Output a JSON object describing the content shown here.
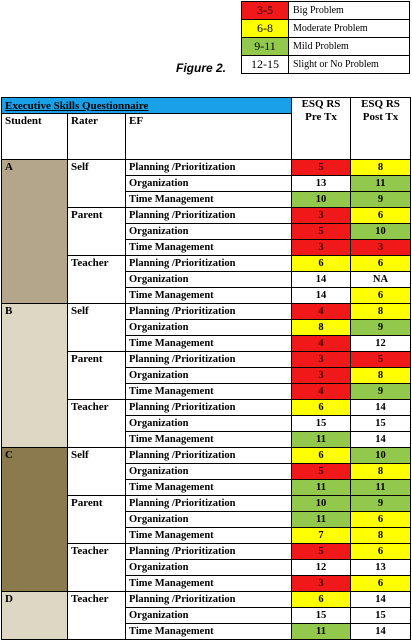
{
  "legend": [
    {
      "range": "3-5",
      "label": "Big Problem",
      "color": "#f01818"
    },
    {
      "range": "6-8",
      "label": "Moderate Problem",
      "color": "#ffff00"
    },
    {
      "range": "9-11",
      "label": "Mild Problem",
      "color": "#92c94d"
    },
    {
      "range": "12-15",
      "label": "Slight or No Problem",
      "color": "#ffffff"
    }
  ],
  "figure_label": "Figure 2.",
  "table": {
    "title": "Executive Skills Questionnaire",
    "headers": {
      "student": "Student",
      "rater": "Rater",
      "ef": "EF",
      "pre": "ESQ RS Pre Tx",
      "post": "ESQ RS Post Tx"
    },
    "students": [
      {
        "id": "A",
        "color": "#b3a68a",
        "raters": [
          {
            "name": "Self",
            "rows": [
              {
                "ef": "Planning /Prioritization",
                "pre": "5",
                "post": "8"
              },
              {
                "ef": "Organization",
                "pre": "13",
                "post": "11"
              },
              {
                "ef": "Time Management",
                "pre": "10",
                "post": "9"
              }
            ]
          },
          {
            "name": "Parent",
            "rows": [
              {
                "ef": "Planning /Prioritization",
                "pre": "3",
                "post": "6"
              },
              {
                "ef": "Organization",
                "pre": "5",
                "post": "10"
              },
              {
                "ef": "Time Management",
                "pre": "3",
                "post": "3"
              }
            ]
          },
          {
            "name": "Teacher",
            "rows": [
              {
                "ef": "Planning /Prioritization",
                "pre": "6",
                "post": "6"
              },
              {
                "ef": "Organization",
                "pre": "14",
                "post": "NA"
              },
              {
                "ef": "Time Management",
                "pre": "14",
                "post": "6"
              }
            ]
          }
        ]
      },
      {
        "id": "B",
        "color": "#ddd8c4",
        "raters": [
          {
            "name": "Self",
            "rows": [
              {
                "ef": "Planning /Prioritization",
                "pre": "4",
                "post": "8"
              },
              {
                "ef": "Organization",
                "pre": "8",
                "post": "9"
              },
              {
                "ef": "Time Management",
                "pre": "4",
                "post": "12"
              }
            ]
          },
          {
            "name": "Parent",
            "rows": [
              {
                "ef": "Planning /Prioritization",
                "pre": "3",
                "post": "5"
              },
              {
                "ef": "Organization",
                "pre": "3",
                "post": "8"
              },
              {
                "ef": "Time Management",
                "pre": "4",
                "post": "9"
              }
            ]
          },
          {
            "name": "Teacher",
            "rows": [
              {
                "ef": "Planning /Prioritization",
                "pre": "6",
                "post": "14"
              },
              {
                "ef": "Organization",
                "pre": "15",
                "post": "15"
              },
              {
                "ef": "Time Management",
                "pre": "11",
                "post": "14"
              }
            ]
          }
        ]
      },
      {
        "id": "C",
        "color": "#8c7a4f",
        "raters": [
          {
            "name": "Self",
            "rows": [
              {
                "ef": "Planning /Prioritization",
                "pre": "6",
                "post": "10"
              },
              {
                "ef": "Organization",
                "pre": "5",
                "post": "8"
              },
              {
                "ef": "Time Management",
                "pre": "11",
                "post": "11"
              }
            ]
          },
          {
            "name": "Parent",
            "rows": [
              {
                "ef": "Planning /Prioritization",
                "pre": "10",
                "post": "9"
              },
              {
                "ef": "Organization",
                "pre": "11",
                "post": "6"
              },
              {
                "ef": "Time Management",
                "pre": "7",
                "post": "8"
              }
            ]
          },
          {
            "name": "Teacher",
            "rows": [
              {
                "ef": "Planning /Prioritization",
                "pre": "5",
                "post": "6"
              },
              {
                "ef": "Organization",
                "pre": "12",
                "post": "13"
              },
              {
                "ef": "Time Management",
                "pre": "3",
                "post": "6"
              }
            ]
          }
        ]
      },
      {
        "id": "D",
        "color": "#ddd8c4",
        "raters": [
          {
            "name": "Teacher",
            "rows": [
              {
                "ef": "Planning /Prioritization",
                "pre": "6",
                "post": "14"
              },
              {
                "ef": "Organization",
                "pre": "15",
                "post": "15"
              },
              {
                "ef": "Time Management",
                "pre": "11",
                "post": "14"
              }
            ]
          }
        ]
      }
    ]
  }
}
